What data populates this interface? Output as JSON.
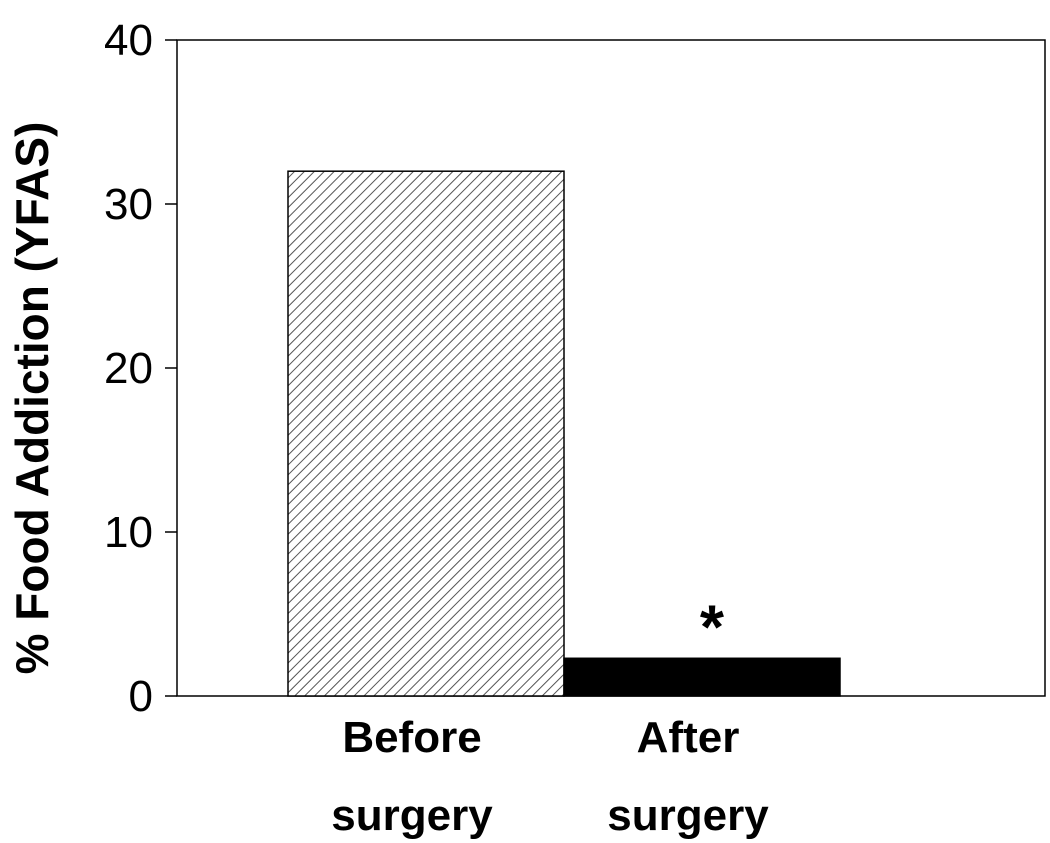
{
  "chart_data": {
    "type": "bar",
    "categories": [
      "Before surgery",
      "After surgery"
    ],
    "category_lines": [
      [
        "Before",
        "surgery"
      ],
      [
        "After",
        "surgery"
      ]
    ],
    "values": [
      32,
      2.3
    ],
    "ylabel": "% Food Addiction (YFAS)",
    "xlabel": "",
    "ylim": [
      0,
      40
    ],
    "yticks": [
      0,
      10,
      20,
      30,
      40
    ],
    "grid": false,
    "legend": "none",
    "bar_styles": [
      "diagonal-hatch",
      "solid"
    ],
    "colors": {
      "hatch": "#555555",
      "solid": "#000000",
      "axis": "#000000"
    },
    "annotations": [
      {
        "category": "After surgery",
        "text": "*"
      }
    ]
  }
}
